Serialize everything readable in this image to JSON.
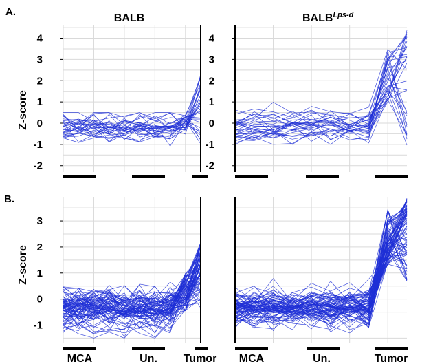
{
  "panel_labels": [
    "A.",
    "B."
  ],
  "column_titles": [
    "BALB",
    "BALB",
    "Lps-d"
  ],
  "ylabel": "Z-score",
  "group_labels": [
    "MCA",
    "Un.",
    "Tumor"
  ],
  "colors": {
    "series": "#1f2fd6",
    "grid": "#d9d9d9",
    "axis": "#000000"
  },
  "chart_data": [
    {
      "type": "line",
      "panel": "A.",
      "title": "BALB",
      "ylabel": "Z-score",
      "x_positions": 10,
      "ylim": [
        -2.3,
        4.6
      ],
      "yticks": [
        -2,
        -1,
        0,
        1,
        2,
        3,
        4
      ],
      "n_lines": 30,
      "baseline": {
        "range": [
          -1.2,
          0.5
        ]
      },
      "tumor": {
        "range": [
          -1.2,
          2.3
        ]
      },
      "groups": [
        {
          "label": "",
          "x": [
            0,
            2
          ]
        },
        {
          "label": "",
          "x": [
            4,
            6
          ]
        },
        {
          "label": "",
          "x": [
            8,
            9
          ]
        }
      ]
    },
    {
      "type": "line",
      "panel": "A.",
      "title": "BALB Lps-d",
      "ylabel": "",
      "x_positions": 10,
      "ylim": [
        -2.3,
        4.6
      ],
      "yticks": [
        -2,
        -1,
        0,
        1,
        2,
        3,
        4
      ],
      "n_lines": 30,
      "baseline": {
        "range": [
          -1.0,
          1.8
        ]
      },
      "tumor": {
        "range": [
          -0.2,
          4.4
        ]
      },
      "groups": [
        {
          "label": "",
          "x": [
            0,
            2
          ]
        },
        {
          "label": "",
          "x": [
            4,
            6
          ]
        },
        {
          "label": "",
          "x": [
            8,
            9
          ]
        }
      ]
    },
    {
      "type": "line",
      "panel": "B.",
      "title": "",
      "ylabel": "Z-score",
      "x_positions": 10,
      "ylim": [
        -1.7,
        3.9
      ],
      "yticks": [
        -1,
        0,
        1,
        2,
        3
      ],
      "n_lines": 80,
      "baseline": {
        "range": [
          -1.5,
          0.8
        ]
      },
      "tumor": {
        "range": [
          -0.5,
          2.2
        ]
      },
      "groups": [
        {
          "label": "MCA",
          "x": [
            0,
            2
          ]
        },
        {
          "label": "Un.",
          "x": [
            4,
            6
          ]
        },
        {
          "label": "Tumor",
          "x": [
            8,
            9
          ]
        }
      ]
    },
    {
      "type": "line",
      "panel": "B.",
      "title": "",
      "ylabel": "",
      "x_positions": 10,
      "ylim": [
        -1.7,
        3.9
      ],
      "yticks": [],
      "n_lines": 80,
      "baseline": {
        "range": [
          -1.3,
          0.9
        ]
      },
      "tumor": {
        "range": [
          0.5,
          3.8
        ]
      },
      "groups": [
        {
          "label": "MCA",
          "x": [
            0,
            2
          ]
        },
        {
          "label": "Un.",
          "x": [
            4,
            6
          ]
        },
        {
          "label": "Tumor",
          "x": [
            8,
            9
          ]
        }
      ]
    }
  ]
}
